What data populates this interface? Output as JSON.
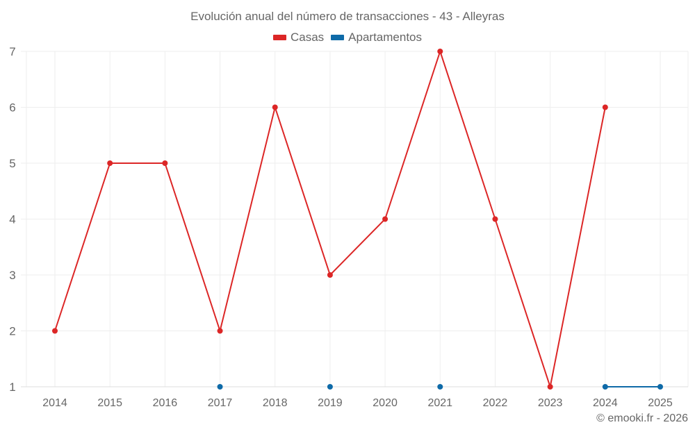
{
  "title": "Evolución anual del número de transacciones - 43 - Alleyras",
  "legend": [
    {
      "label": "Casas",
      "color": "#dc2626"
    },
    {
      "label": "Apartamentos",
      "color": "#0e6aa8"
    }
  ],
  "credit": "© emooki.fr - 2026",
  "colors": {
    "grid": "#eeeeee",
    "axis": "#dddddd",
    "text": "#666666"
  },
  "chart_data": {
    "type": "line",
    "title": "Evolución anual del número de transacciones - 43 - Alleyras",
    "xlabel": "",
    "ylabel": "",
    "categories": [
      "2014",
      "2015",
      "2016",
      "2017",
      "2018",
      "2019",
      "2020",
      "2021",
      "2022",
      "2023",
      "2024",
      "2025"
    ],
    "ylim": [
      1,
      7
    ],
    "yticks": [
      1,
      2,
      3,
      4,
      5,
      6,
      7
    ],
    "grid": true,
    "legend_position": "top",
    "series": [
      {
        "name": "Casas",
        "color": "#dc2626",
        "values": [
          2,
          5,
          5,
          2,
          6,
          3,
          4,
          7,
          4,
          1,
          6,
          null
        ]
      },
      {
        "name": "Apartamentos",
        "color": "#0e6aa8",
        "values": [
          null,
          null,
          null,
          1,
          null,
          1,
          null,
          1,
          null,
          null,
          1,
          1
        ]
      }
    ]
  }
}
